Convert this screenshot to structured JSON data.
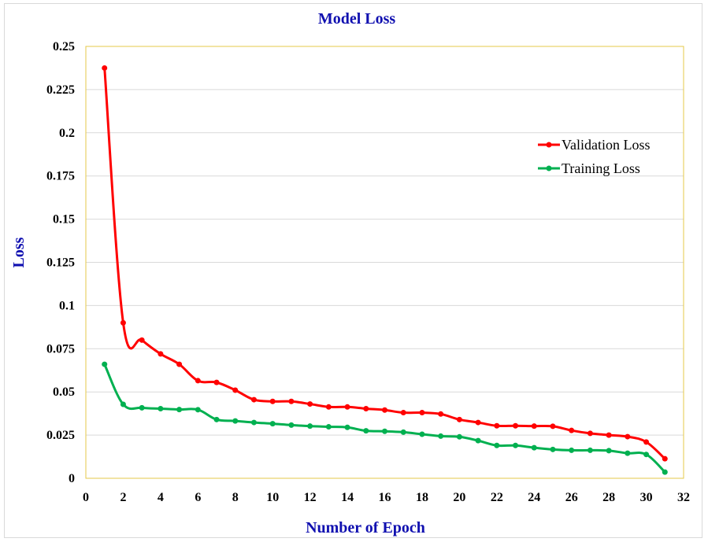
{
  "chart_data": {
    "type": "line",
    "title": "Model Loss",
    "xlabel": "Number of Epoch",
    "ylabel": "Loss",
    "xlim": [
      0,
      32
    ],
    "ylim": [
      0,
      0.25
    ],
    "x_ticks": [
      "0",
      "2",
      "4",
      "6",
      "8",
      "10",
      "12",
      "14",
      "16",
      "18",
      "20",
      "22",
      "24",
      "26",
      "28",
      "30",
      "32"
    ],
    "y_ticks": [
      "0",
      "0.025",
      "0.05",
      "0.075",
      "0.1",
      "0.125",
      "0.15",
      "0.175",
      "0.2",
      "0.225",
      "0.25"
    ],
    "grid": "horizontal",
    "legend_position": "right",
    "x": [
      1,
      2,
      3,
      4,
      5,
      6,
      7,
      8,
      9,
      10,
      11,
      12,
      13,
      14,
      15,
      16,
      17,
      18,
      19,
      20,
      21,
      22,
      23,
      24,
      25,
      26,
      27,
      28,
      29,
      30,
      31
    ],
    "series": [
      {
        "name": "Validation Loss",
        "color": "#ff0000",
        "values": [
          0.2375,
          0.09,
          0.08,
          0.072,
          0.066,
          0.0565,
          0.0555,
          0.051,
          0.0455,
          0.0445,
          0.0445,
          0.043,
          0.0413,
          0.0413,
          0.0403,
          0.0395,
          0.038,
          0.038,
          0.0372,
          0.034,
          0.0323,
          0.0304,
          0.0304,
          0.0302,
          0.0301,
          0.0277,
          0.026,
          0.025,
          0.0241,
          0.021,
          0.0113
        ]
      },
      {
        "name": "Training Loss",
        "color": "#00b050",
        "values": [
          0.066,
          0.0428,
          0.0408,
          0.0403,
          0.0398,
          0.0397,
          0.034,
          0.0332,
          0.0323,
          0.0316,
          0.0308,
          0.0302,
          0.0298,
          0.0295,
          0.0275,
          0.0272,
          0.0267,
          0.0255,
          0.0244,
          0.024,
          0.0218,
          0.019,
          0.019,
          0.0177,
          0.0167,
          0.0162,
          0.0162,
          0.016,
          0.0145,
          0.0138,
          0.0036
        ]
      }
    ]
  },
  "colors": {
    "title": "#1010b0",
    "plot_border": "#e6c84a",
    "grid": "#d9d9d9"
  }
}
